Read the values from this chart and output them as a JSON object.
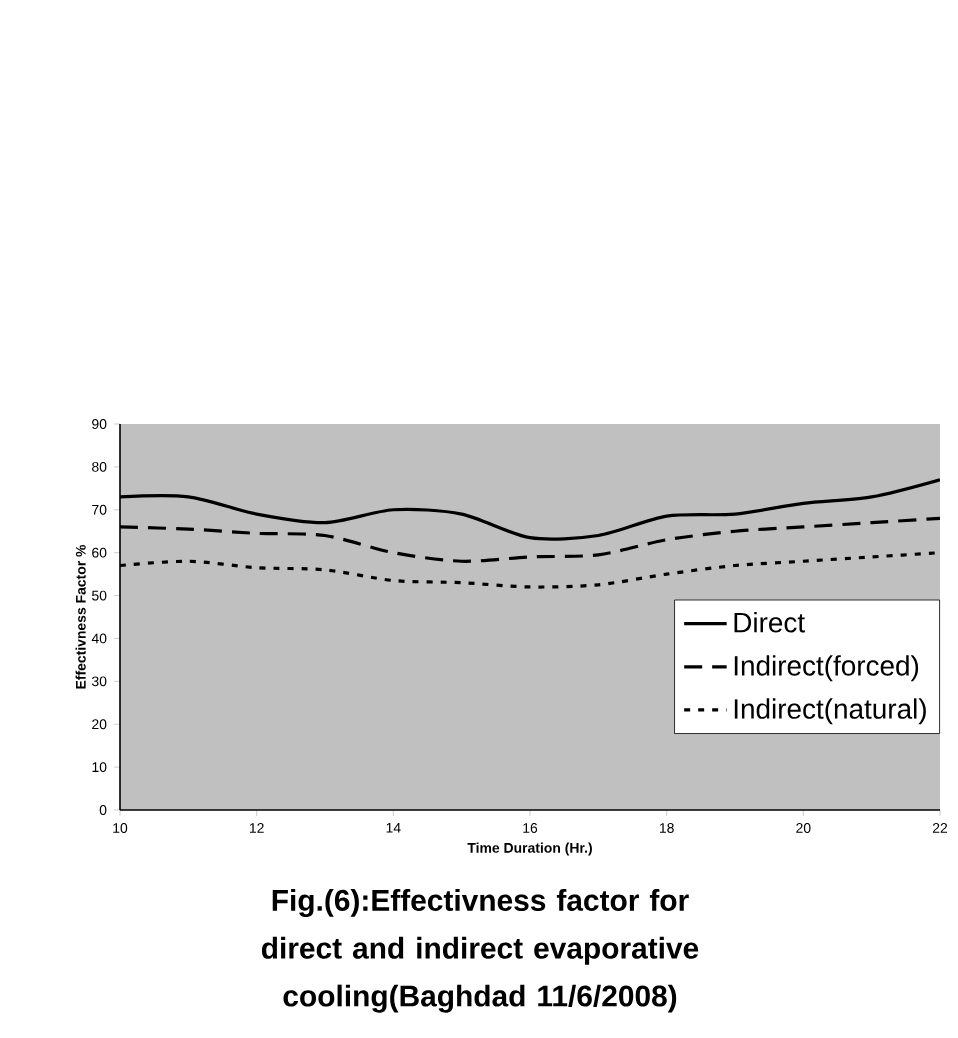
{
  "chart_data": {
    "type": "line",
    "title": "Fig.(6):Effectivness factor for direct and indirect evaporative cooling(Baghdad 11/6/2008)",
    "xlabel": "Time Duration (Hr.)",
    "ylabel": "Effectivness Factor %",
    "x": [
      10,
      11,
      12,
      13,
      14,
      15,
      16,
      17,
      18,
      19,
      20,
      21,
      22
    ],
    "series": [
      {
        "name": "Direct",
        "color": "#000000",
        "line_style": "solid",
        "values": [
          73,
          73,
          69,
          67,
          70,
          69,
          63.5,
          64,
          68.5,
          69,
          71.5,
          73,
          77
        ]
      },
      {
        "name": "Indirect(forced)",
        "color": "#000000",
        "line_style": "dashed",
        "values": [
          66,
          65.5,
          64.5,
          64,
          60,
          58,
          59,
          59.5,
          63,
          65,
          66,
          67,
          68
        ]
      },
      {
        "name": "Indirect(natural)",
        "color": "#000000",
        "line_style": "dotted",
        "values": [
          57,
          58,
          56.5,
          56,
          53.5,
          53,
          52,
          52.5,
          55,
          57,
          58,
          59,
          60
        ]
      }
    ],
    "xlim": [
      10,
      22
    ],
    "xticks": [
      10,
      12,
      14,
      16,
      18,
      20,
      22
    ],
    "ylim": [
      0,
      90
    ],
    "yticks": [
      0,
      10,
      20,
      30,
      40,
      50,
      60,
      70,
      80,
      90
    ],
    "grid": false,
    "legend": "bottom right",
    "marker": "none"
  }
}
